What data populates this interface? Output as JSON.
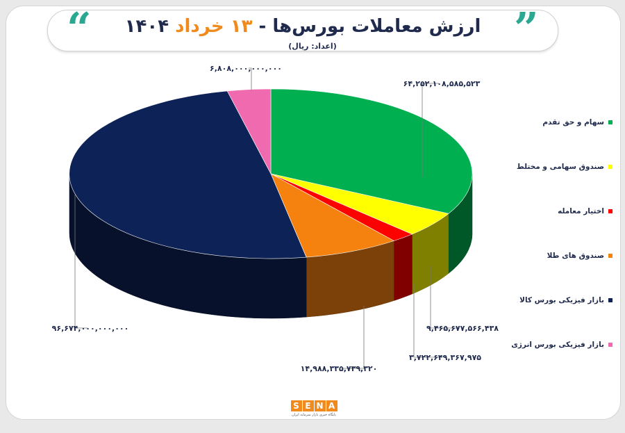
{
  "header": {
    "title_main": "ارزش معاملات بورس‌ها -",
    "title_accent": "۱۳ خرداد",
    "title_year": "۱۴۰۴",
    "unit_label": "(اعداد: ریال)"
  },
  "colors": {
    "accent": "#f08a1c",
    "teal": "#2aa891",
    "navy": "#1f2a4d"
  },
  "chart_data": {
    "type": "pie",
    "title": "ارزش معاملات بورس‌ها - ۱۳ خرداد ۱۴۰۴",
    "unit": "(اعداد: ریال)",
    "legend_position": "right",
    "slices": [
      {
        "name": "سهام و حق تقدم",
        "value": 64252108585523,
        "label": "۶۴,۲۵۲,۱۰۸,۵۸۵,۵۲۳",
        "color": "#00b050"
      },
      {
        "name": "صندوق سهامی و مختلط",
        "value": 9465677566438,
        "label": "۹,۴۶۵,۶۷۷,۵۶۶,۴۳۸",
        "color": "#ffff00"
      },
      {
        "name": "اختیار معامله",
        "value": 3722649367975,
        "label": "۳,۷۲۲,۶۴۹,۳۶۷,۹۷۵",
        "color": "#ff0000"
      },
      {
        "name": "صندوق های طلا",
        "value": 14988335739320,
        "label": "۱۴,۹۸۸,۳۳۵,۷۳۹,۳۲۰",
        "color": "#f5820f"
      },
      {
        "name": "بازار فیزیکی بورس کالا",
        "value": 96674000000000,
        "label": "۹۶,۶۷۴,۰۰۰,۰۰۰,۰۰۰",
        "color": "#0d2256"
      },
      {
        "name": "بازار فیزیکی بورس انرژی",
        "value": 6808000000000,
        "label": "۶,۸۰۸,۰۰۰,۰۰۰,۰۰۰",
        "color": "#f06ab0"
      }
    ]
  },
  "footer": {
    "logo_letters": [
      "S",
      "E",
      "N",
      "A"
    ],
    "logo_subtitle": "پایگاه خبری بازار سرمایه ایران"
  }
}
